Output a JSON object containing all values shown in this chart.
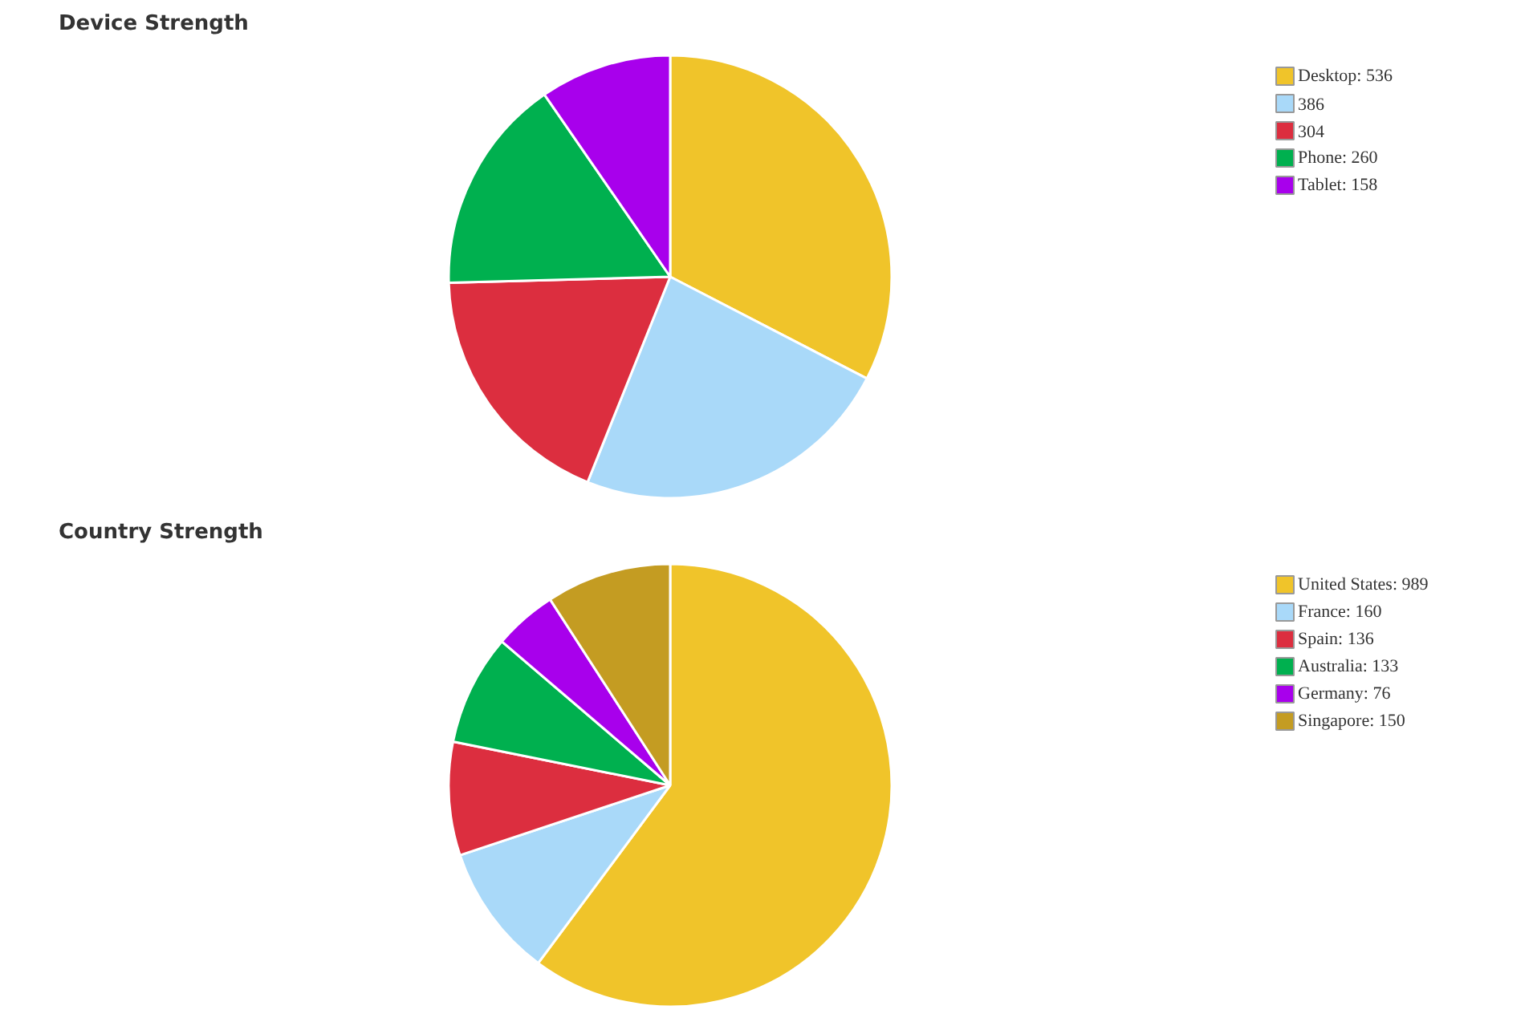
{
  "chart_data": [
    {
      "type": "pie",
      "title": "Device Strength",
      "categories": [
        "Desktop: 536",
        "386",
        "304",
        "Phone: 260",
        "Tablet: 158"
      ],
      "values": [
        536,
        386,
        304,
        260,
        158
      ],
      "colors": [
        "#f0c42a",
        "#a9d9f9",
        "#dc2e3f",
        "#00b04f",
        "#a800ec"
      ],
      "legend": "top right"
    },
    {
      "type": "pie",
      "title": "Country Strength",
      "categories": [
        "United States: 989",
        "France: 160",
        "Spain: 136",
        "Australia: 133",
        "Germany: 76",
        "Singapore: 150"
      ],
      "values": [
        989,
        160,
        136,
        133,
        76,
        150
      ],
      "colors": [
        "#f0c42a",
        "#a9d9f9",
        "#dc2e3f",
        "#00b04f",
        "#a800ec",
        "#c49c22"
      ],
      "legend": "top right"
    }
  ]
}
